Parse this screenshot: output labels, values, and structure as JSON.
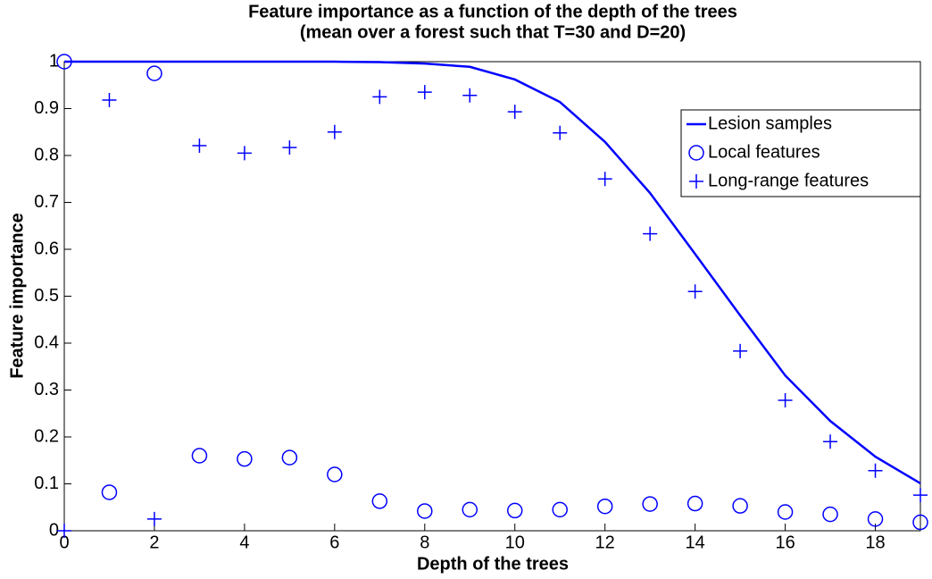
{
  "chart_data": {
    "type": "line_scatter",
    "title": "Feature importance as a function of the depth of the trees",
    "subtitle": "(mean over a forest such that T=30 and D=20)",
    "xlabel": "Depth of the trees",
    "ylabel": "Feature importance",
    "x": [
      0,
      1,
      2,
      3,
      4,
      5,
      6,
      7,
      8,
      9,
      10,
      11,
      12,
      13,
      14,
      15,
      16,
      17,
      18,
      19
    ],
    "series": [
      {
        "name": "Lesion samples",
        "color": "#0000ff",
        "marker": "line",
        "values": [
          1.0,
          1.0,
          1.0,
          1.0,
          1.0,
          1.0,
          1.0,
          0.999,
          0.996,
          0.989,
          0.962,
          0.914,
          0.829,
          0.72,
          0.59,
          0.459,
          0.331,
          0.234,
          0.158,
          0.101
        ]
      },
      {
        "name": "Local features",
        "color": "#0000ff",
        "marker": "circle",
        "values": [
          1.0,
          0.082,
          0.975,
          0.16,
          0.153,
          0.156,
          0.12,
          0.063,
          0.042,
          0.045,
          0.043,
          0.045,
          0.052,
          0.057,
          0.058,
          0.053,
          0.04,
          0.035,
          0.025,
          0.018
        ]
      },
      {
        "name": "Long-range features",
        "color": "#0000ff",
        "marker": "plus",
        "values": [
          0,
          0.918,
          0.025,
          0.821,
          0.805,
          0.817,
          0.85,
          0.925,
          0.935,
          0.928,
          0.893,
          0.848,
          0.75,
          0.633,
          0.51,
          0.383,
          0.278,
          0.19,
          0.128,
          0.076
        ]
      }
    ],
    "xlim": [
      0,
      19
    ],
    "xticks": [
      0,
      2,
      4,
      6,
      8,
      10,
      12,
      14,
      16,
      18
    ],
    "ylim": [
      0,
      1
    ],
    "yticks": [
      0,
      0.1,
      0.2,
      0.3,
      0.4,
      0.5,
      0.6,
      0.7,
      0.8,
      0.9,
      1
    ],
    "legend": "upper right"
  }
}
